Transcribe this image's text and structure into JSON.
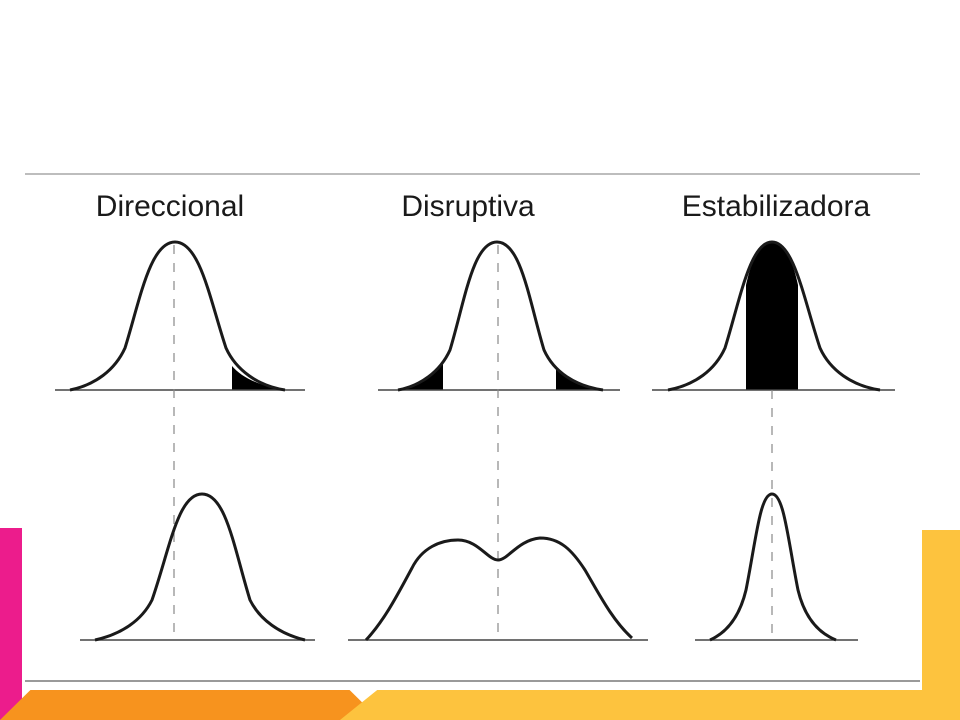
{
  "panels": [
    {
      "title": "Direccional",
      "selection": "directional"
    },
    {
      "title": "Disruptiva",
      "selection": "disruptive"
    },
    {
      "title": "Estabilizadora",
      "selection": "stabilizing"
    }
  ],
  "colors": {
    "accent_left": "#EC1C8C",
    "accent_right": "#FDC33E",
    "bottom_orange": "#F7931E",
    "bottom_yellow": "#FDC33E",
    "curve": "#1a1a1a",
    "guide": "#888888",
    "rule": "#bdbdbd"
  }
}
